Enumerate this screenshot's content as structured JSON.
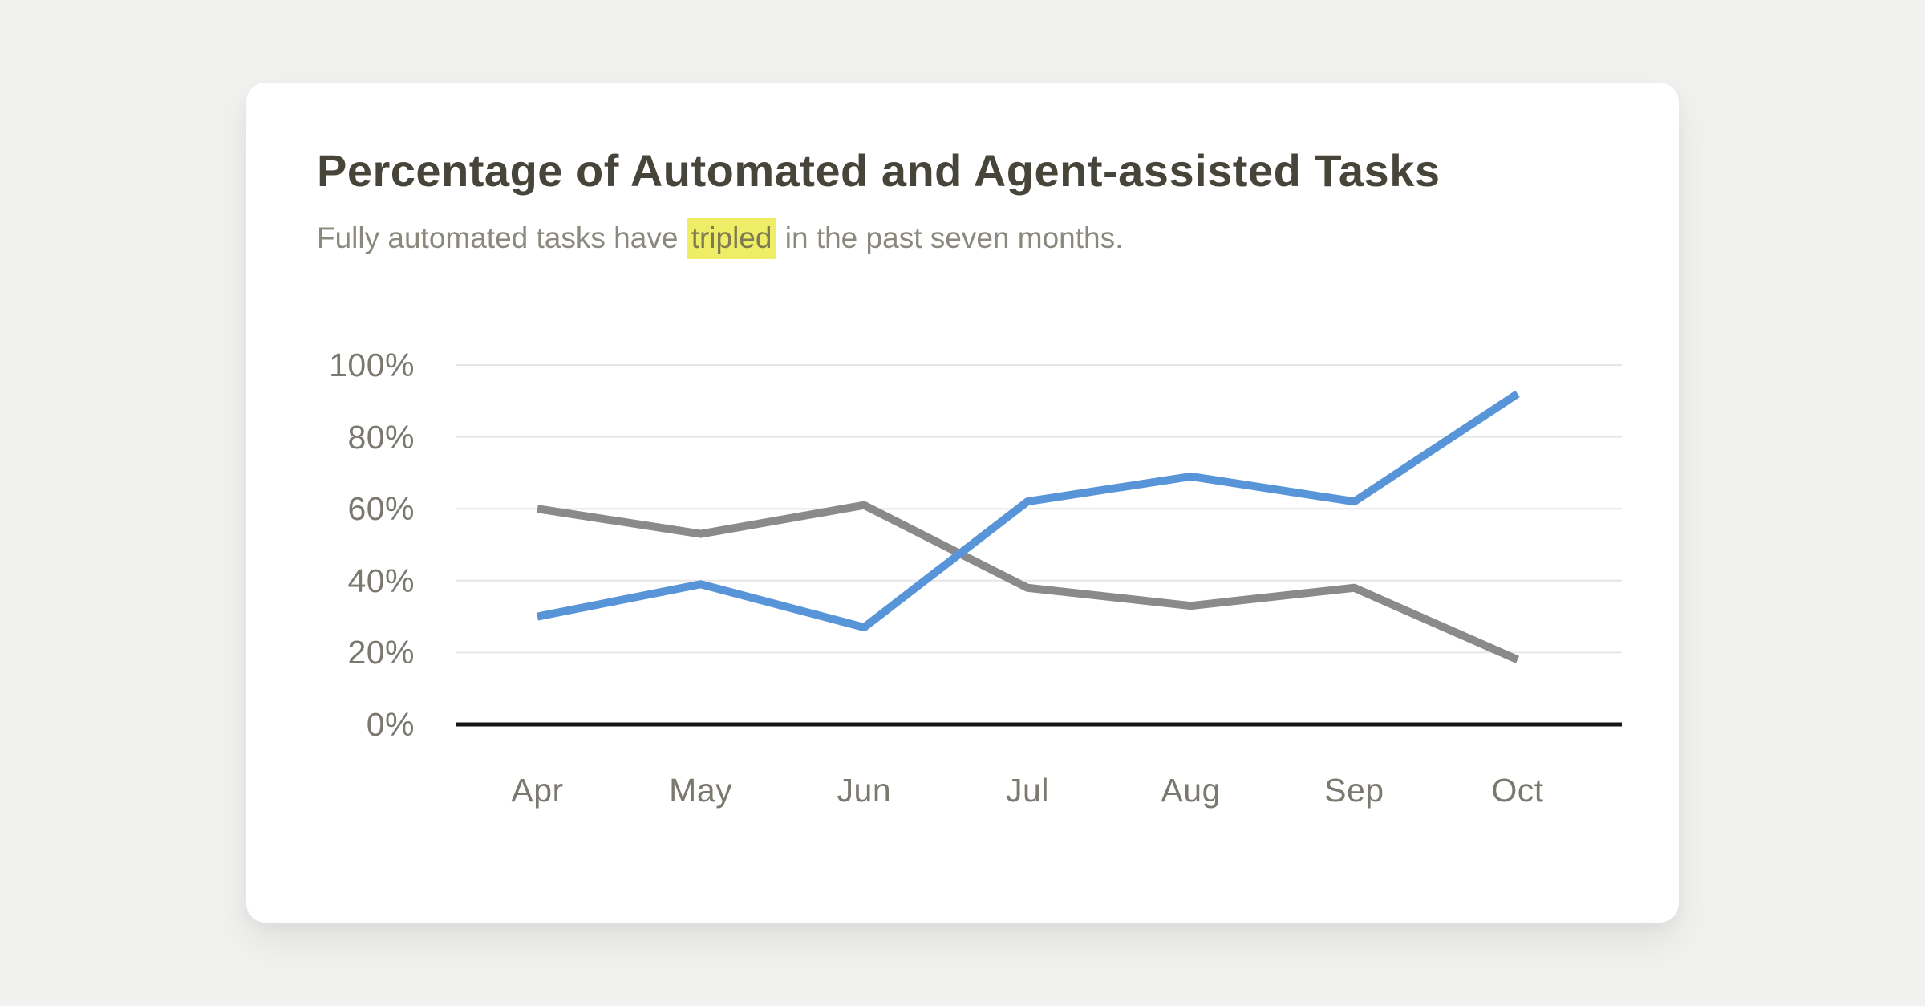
{
  "page": {
    "background_color": "#f1f1ef",
    "card_color": "#ffffff"
  },
  "card": {
    "title": "Percentage of Automated and Agent-assisted Tasks",
    "subtitle": {
      "before": "Fully automated tasks have ",
      "highlight": "tripled",
      "after": " in the past seven months.",
      "highlight_color": "#efec66"
    }
  },
  "chart_data": {
    "type": "line",
    "title": "Percentage of Automated and Agent-assisted Tasks",
    "subtitle": "Fully automated tasks have tripled in the past seven months.",
    "categories": [
      "Apr",
      "May",
      "Jun",
      "Jul",
      "Aug",
      "Sep",
      "Oct"
    ],
    "series": [
      {
        "name": "Fully automated tasks",
        "color": "#5894d8",
        "values": [
          30,
          39,
          27,
          62,
          69,
          62,
          92
        ]
      },
      {
        "name": "Agent-assisted tasks",
        "color": "#8a8a8a",
        "values": [
          60,
          53,
          61,
          38,
          33,
          38,
          18
        ]
      }
    ],
    "xlabel": "",
    "ylabel": "",
    "ylim": [
      0,
      100
    ],
    "yticks": [
      0,
      20,
      40,
      60,
      80,
      100
    ],
    "ytick_labels": [
      "0%",
      "20%",
      "40%",
      "60%",
      "80%",
      "100%"
    ],
    "grid": true,
    "legend_position": "none",
    "colors": {
      "gridline": "#e6e6e6",
      "axis_line": "#151515",
      "tick_text": "#7b786f"
    },
    "line_width": 10
  }
}
